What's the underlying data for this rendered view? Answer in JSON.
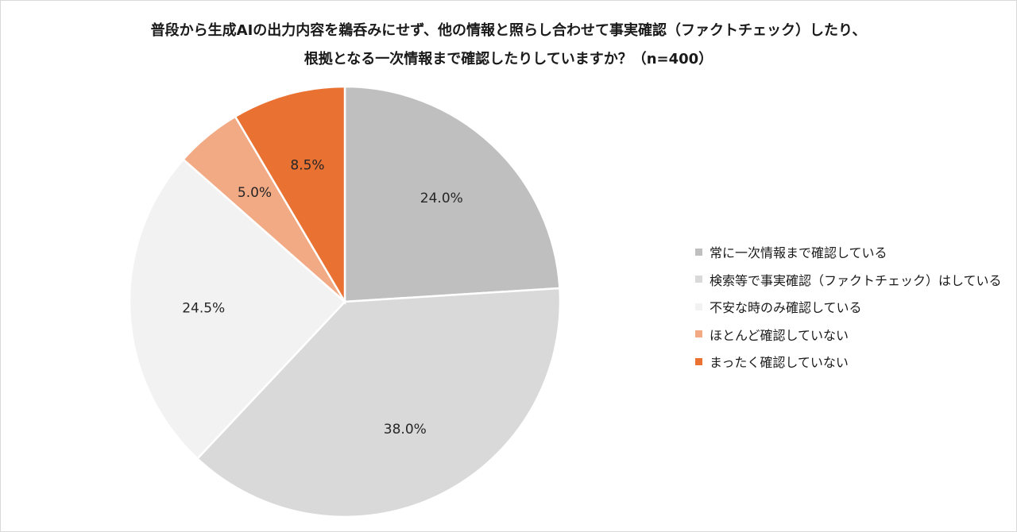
{
  "chart_data": {
    "type": "pie",
    "title_lines": [
      "普段から生成AIの出力内容を鵜呑みにせず、他の情報と照らし合わせて事実確認（ファクトチェック）したり、",
      "根拠となる一次情報まで確認したりしていますか？（n=400）"
    ],
    "categories": [
      "常に一次情報まで確認している",
      "検索等で事実確認（ファクトチェック）はしている",
      "不安な時のみ確認している",
      "ほとんど確認していない",
      "まったく確認していない"
    ],
    "values": [
      24.0,
      38.0,
      24.5,
      5.0,
      8.5
    ],
    "labels": [
      "24.0%",
      "38.0%",
      "24.5%",
      "5.0%",
      "8.5%"
    ],
    "colors": [
      "#bfbfbf",
      "#d9d9d9",
      "#f2f2f2",
      "#f2aa84",
      "#e97132"
    ],
    "start": "12 o'clock",
    "direction": "clockwise",
    "legend_position": "right"
  }
}
